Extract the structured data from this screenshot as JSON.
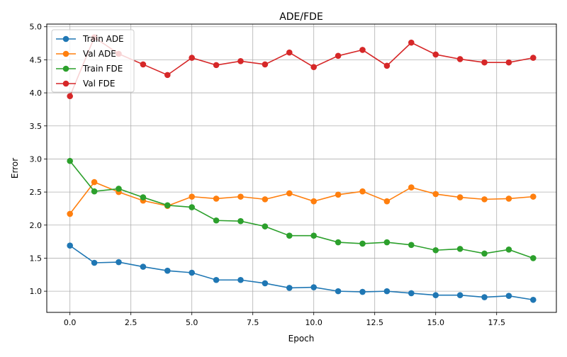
{
  "chart_data": {
    "type": "line",
    "title": "ADE/FDE",
    "xlabel": "Epoch",
    "ylabel": "Error",
    "xlim": [
      -0.95,
      19.95
    ],
    "ylim": [
      0.68,
      5.04
    ],
    "xticks": [
      0.0,
      2.5,
      5.0,
      7.5,
      10.0,
      12.5,
      15.0,
      17.5
    ],
    "xtick_labels": [
      "0.0",
      "2.5",
      "5.0",
      "7.5",
      "10.0",
      "12.5",
      "15.0",
      "17.5"
    ],
    "yticks": [
      1.0,
      1.5,
      2.0,
      2.5,
      3.0,
      3.5,
      4.0,
      4.5,
      5.0
    ],
    "ytick_labels": [
      "1.0",
      "1.5",
      "2.0",
      "2.5",
      "3.0",
      "3.5",
      "4.0",
      "4.5",
      "5.0"
    ],
    "grid": true,
    "legend_position": "upper-left",
    "x": [
      0,
      1,
      2,
      3,
      4,
      5,
      6,
      7,
      8,
      9,
      10,
      11,
      12,
      13,
      14,
      15,
      16,
      17,
      18,
      19
    ],
    "series": [
      {
        "name": "Train ADE",
        "color": "#1f77b4",
        "values": [
          1.69,
          1.43,
          1.44,
          1.37,
          1.31,
          1.28,
          1.17,
          1.17,
          1.12,
          1.05,
          1.06,
          1.0,
          0.99,
          1.0,
          0.97,
          0.94,
          0.94,
          0.91,
          0.93,
          0.87
        ]
      },
      {
        "name": "Val ADE",
        "color": "#ff7f0e",
        "values": [
          2.17,
          2.65,
          2.5,
          2.37,
          2.29,
          2.43,
          2.4,
          2.43,
          2.39,
          2.48,
          2.36,
          2.46,
          2.51,
          2.36,
          2.57,
          2.47,
          2.42,
          2.39,
          2.4,
          2.43
        ]
      },
      {
        "name": "Train FDE",
        "color": "#2ca02c",
        "values": [
          2.97,
          2.51,
          2.55,
          2.42,
          2.3,
          2.27,
          2.07,
          2.06,
          1.98,
          1.84,
          1.84,
          1.74,
          1.72,
          1.74,
          1.7,
          1.62,
          1.64,
          1.57,
          1.63,
          1.5
        ]
      },
      {
        "name": "Val FDE",
        "color": "#d62728",
        "values": [
          3.95,
          4.84,
          4.59,
          4.43,
          4.27,
          4.53,
          4.42,
          4.48,
          4.43,
          4.61,
          4.39,
          4.56,
          4.65,
          4.41,
          4.76,
          4.58,
          4.51,
          4.46,
          4.46,
          4.53
        ]
      }
    ]
  }
}
